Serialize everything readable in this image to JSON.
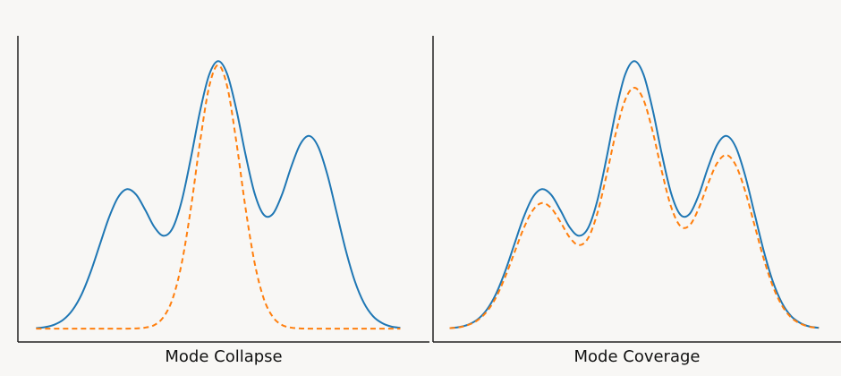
{
  "chart_data": [
    {
      "type": "line",
      "xlabel": "Mode Collapse",
      "xlim": [
        -0.5,
        10.8
      ],
      "ylim": [
        -0.05,
        1.1
      ],
      "x": [
        0,
        0.25,
        0.5,
        0.75,
        1,
        1.25,
        1.5,
        1.75,
        2,
        2.25,
        2.5,
        2.75,
        3,
        3.25,
        3.5,
        3.75,
        4,
        4.25,
        4.5,
        4.75,
        5,
        5.25,
        5.5,
        5.75,
        6,
        6.25,
        6.5,
        6.75,
        7,
        7.25,
        7.5,
        7.75,
        8,
        8.25,
        8.5,
        8.75,
        9,
        9.25,
        9.5,
        9.75,
        10
      ],
      "series": [
        {
          "color": "#1f77b4",
          "dash": false,
          "values": [
            0.002,
            0.006,
            0.015,
            0.034,
            0.07,
            0.129,
            0.214,
            0.316,
            0.417,
            0.493,
            0.524,
            0.503,
            0.445,
            0.381,
            0.349,
            0.378,
            0.481,
            0.641,
            0.816,
            0.953,
            1.005,
            0.955,
            0.822,
            0.654,
            0.508,
            0.428,
            0.431,
            0.503,
            0.606,
            0.692,
            0.724,
            0.682,
            0.577,
            0.437,
            0.296,
            0.179,
            0.097,
            0.047,
            0.021,
            0.008,
            0.003
          ]
        },
        {
          "color": "#ff7f0e",
          "dash": true,
          "values": [
            0,
            0,
            0,
            0,
            0,
            0,
            0,
            0,
            0,
            0,
            0,
            0.001,
            0.004,
            0.014,
            0.044,
            0.113,
            0.247,
            0.453,
            0.7,
            0.908,
            0.99,
            0.908,
            0.7,
            0.453,
            0.247,
            0.113,
            0.044,
            0.014,
            0.004,
            0.001,
            0,
            0,
            0,
            0,
            0,
            0,
            0,
            0,
            0,
            0,
            0
          ]
        }
      ]
    },
    {
      "type": "line",
      "xlabel": "Mode Coverage",
      "xlim": [
        -0.45,
        10.6
      ],
      "ylim": [
        -0.05,
        1.1
      ],
      "x": [
        0,
        0.25,
        0.5,
        0.75,
        1,
        1.25,
        1.5,
        1.75,
        2,
        2.25,
        2.5,
        2.75,
        3,
        3.25,
        3.5,
        3.75,
        4,
        4.25,
        4.5,
        4.75,
        5,
        5.25,
        5.5,
        5.75,
        6,
        6.25,
        6.5,
        6.75,
        7,
        7.25,
        7.5,
        7.75,
        8,
        8.25,
        8.5,
        8.75,
        9,
        9.25,
        9.5,
        9.75,
        10
      ],
      "series": [
        {
          "color": "#1f77b4",
          "dash": false,
          "values": [
            0.002,
            0.006,
            0.015,
            0.034,
            0.07,
            0.129,
            0.214,
            0.316,
            0.417,
            0.493,
            0.524,
            0.503,
            0.445,
            0.381,
            0.349,
            0.378,
            0.481,
            0.641,
            0.816,
            0.953,
            1.005,
            0.955,
            0.822,
            0.654,
            0.508,
            0.428,
            0.431,
            0.503,
            0.606,
            0.692,
            0.724,
            0.682,
            0.577,
            0.437,
            0.296,
            0.179,
            0.097,
            0.047,
            0.021,
            0.008,
            0.003
          ]
        },
        {
          "color": "#ff7f0e",
          "dash": true,
          "values": [
            0.002,
            0.005,
            0.014,
            0.031,
            0.063,
            0.116,
            0.193,
            0.284,
            0.375,
            0.444,
            0.472,
            0.453,
            0.401,
            0.343,
            0.314,
            0.34,
            0.433,
            0.577,
            0.734,
            0.858,
            0.905,
            0.86,
            0.74,
            0.589,
            0.457,
            0.385,
            0.388,
            0.453,
            0.545,
            0.623,
            0.652,
            0.614,
            0.519,
            0.393,
            0.266,
            0.161,
            0.087,
            0.042,
            0.019,
            0.007,
            0.003
          ]
        }
      ]
    }
  ]
}
